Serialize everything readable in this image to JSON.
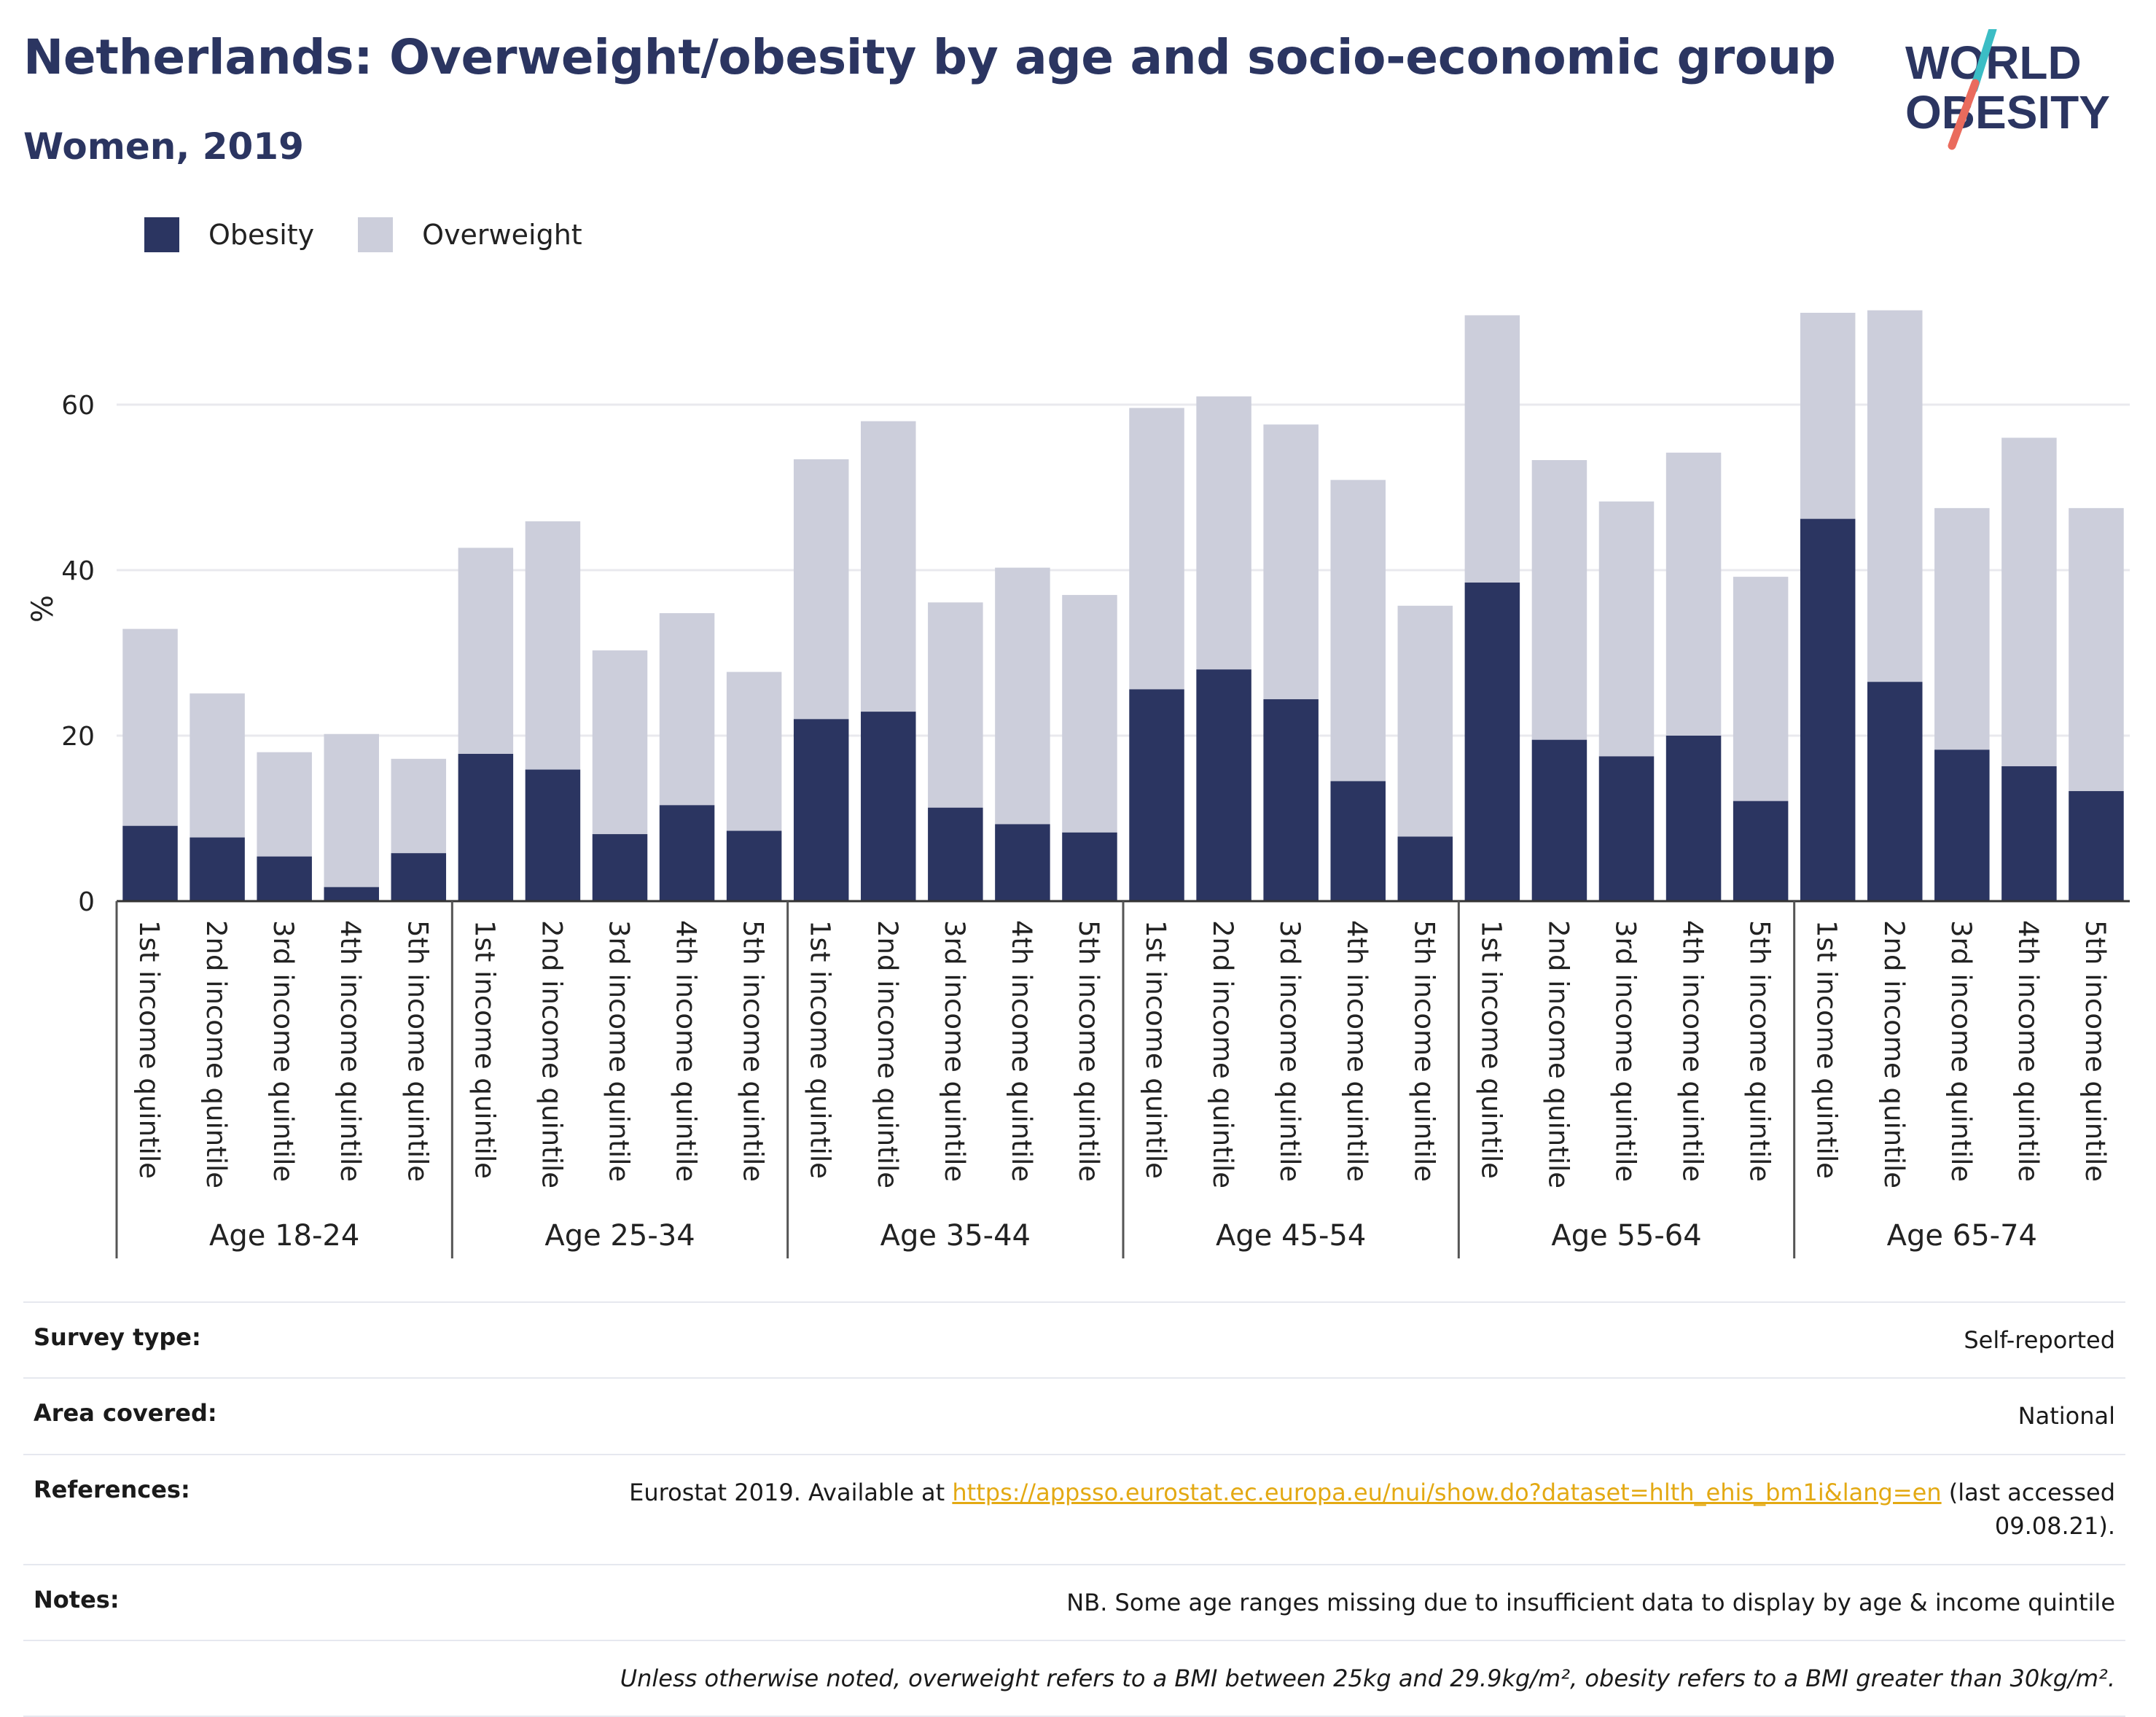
{
  "header": {
    "title": "Netherlands: Overweight/obesity by age and socio-economic group",
    "subtitle": "Women, 2019",
    "logo_line1": "WORLD",
    "logo_line2": "OBESITY"
  },
  "colors": {
    "obesity": "#2b3561",
    "overweight": "#cccedb",
    "title": "#2b3561",
    "link": "#e3a913",
    "logo_teal": "#3bbdc5",
    "logo_coral": "#ea6b5d"
  },
  "legend": [
    {
      "label": "Obesity",
      "color": "#2b3561"
    },
    {
      "label": "Overweight",
      "color": "#cccedb"
    }
  ],
  "chart_data": {
    "type": "bar",
    "stacked": true,
    "ylabel": "%",
    "ylim": [
      0,
      78
    ],
    "yticks": [
      0,
      20,
      40,
      60
    ],
    "grid": true,
    "legend_position": "top-left",
    "groups": [
      "Age 18-24",
      "Age 25-34",
      "Age 35-44",
      "Age 45-54",
      "Age 55-64",
      "Age 65-74"
    ],
    "subcategories": [
      "1st income quintile",
      "2nd income quintile",
      "3rd income quintile",
      "4th income quintile",
      "5th income quintile"
    ],
    "series": [
      {
        "name": "Obesity",
        "values": [
          [
            9.1,
            7.7,
            5.4,
            1.7,
            5.8
          ],
          [
            17.8,
            15.9,
            8.1,
            11.6,
            8.5
          ],
          [
            22.0,
            22.9,
            11.3,
            9.3,
            8.3
          ],
          [
            25.6,
            28.0,
            24.4,
            14.5,
            7.8
          ],
          [
            38.5,
            19.5,
            17.5,
            20.0,
            12.1
          ],
          [
            46.2,
            26.5,
            18.3,
            16.3,
            13.3
          ]
        ]
      },
      {
        "name": "Overweight",
        "values": [
          [
            23.8,
            17.4,
            12.6,
            18.5,
            11.4
          ],
          [
            24.9,
            30.0,
            22.2,
            23.2,
            19.2
          ],
          [
            31.4,
            35.1,
            24.8,
            31.0,
            28.7
          ],
          [
            34.0,
            33.0,
            33.2,
            36.4,
            27.9
          ],
          [
            32.3,
            33.8,
            30.8,
            34.2,
            27.1
          ],
          [
            24.9,
            44.9,
            29.2,
            39.7,
            34.2
          ]
        ]
      }
    ]
  },
  "info": [
    {
      "label": "Survey type:",
      "value": "Self-reported"
    },
    {
      "label": "Area covered:",
      "value": "National"
    },
    {
      "label": "References:",
      "value_prefix": "Eurostat 2019. Available at ",
      "link": "https://appsso.eurostat.ec.europa.eu/nui/show.do?dataset=hlth_ehis_bm1i&lang=en",
      "value_suffix": " (last accessed",
      "value_line2": "09.08.21)."
    },
    {
      "label": "Notes:",
      "value": "NB. Some age ranges missing due to insufficient data to display by age & income quintile"
    }
  ],
  "footnote": "Unless otherwise noted, overweight refers to a BMI between 25kg and 29.9kg/m², obesity refers to a BMI greater than 30kg/m²."
}
